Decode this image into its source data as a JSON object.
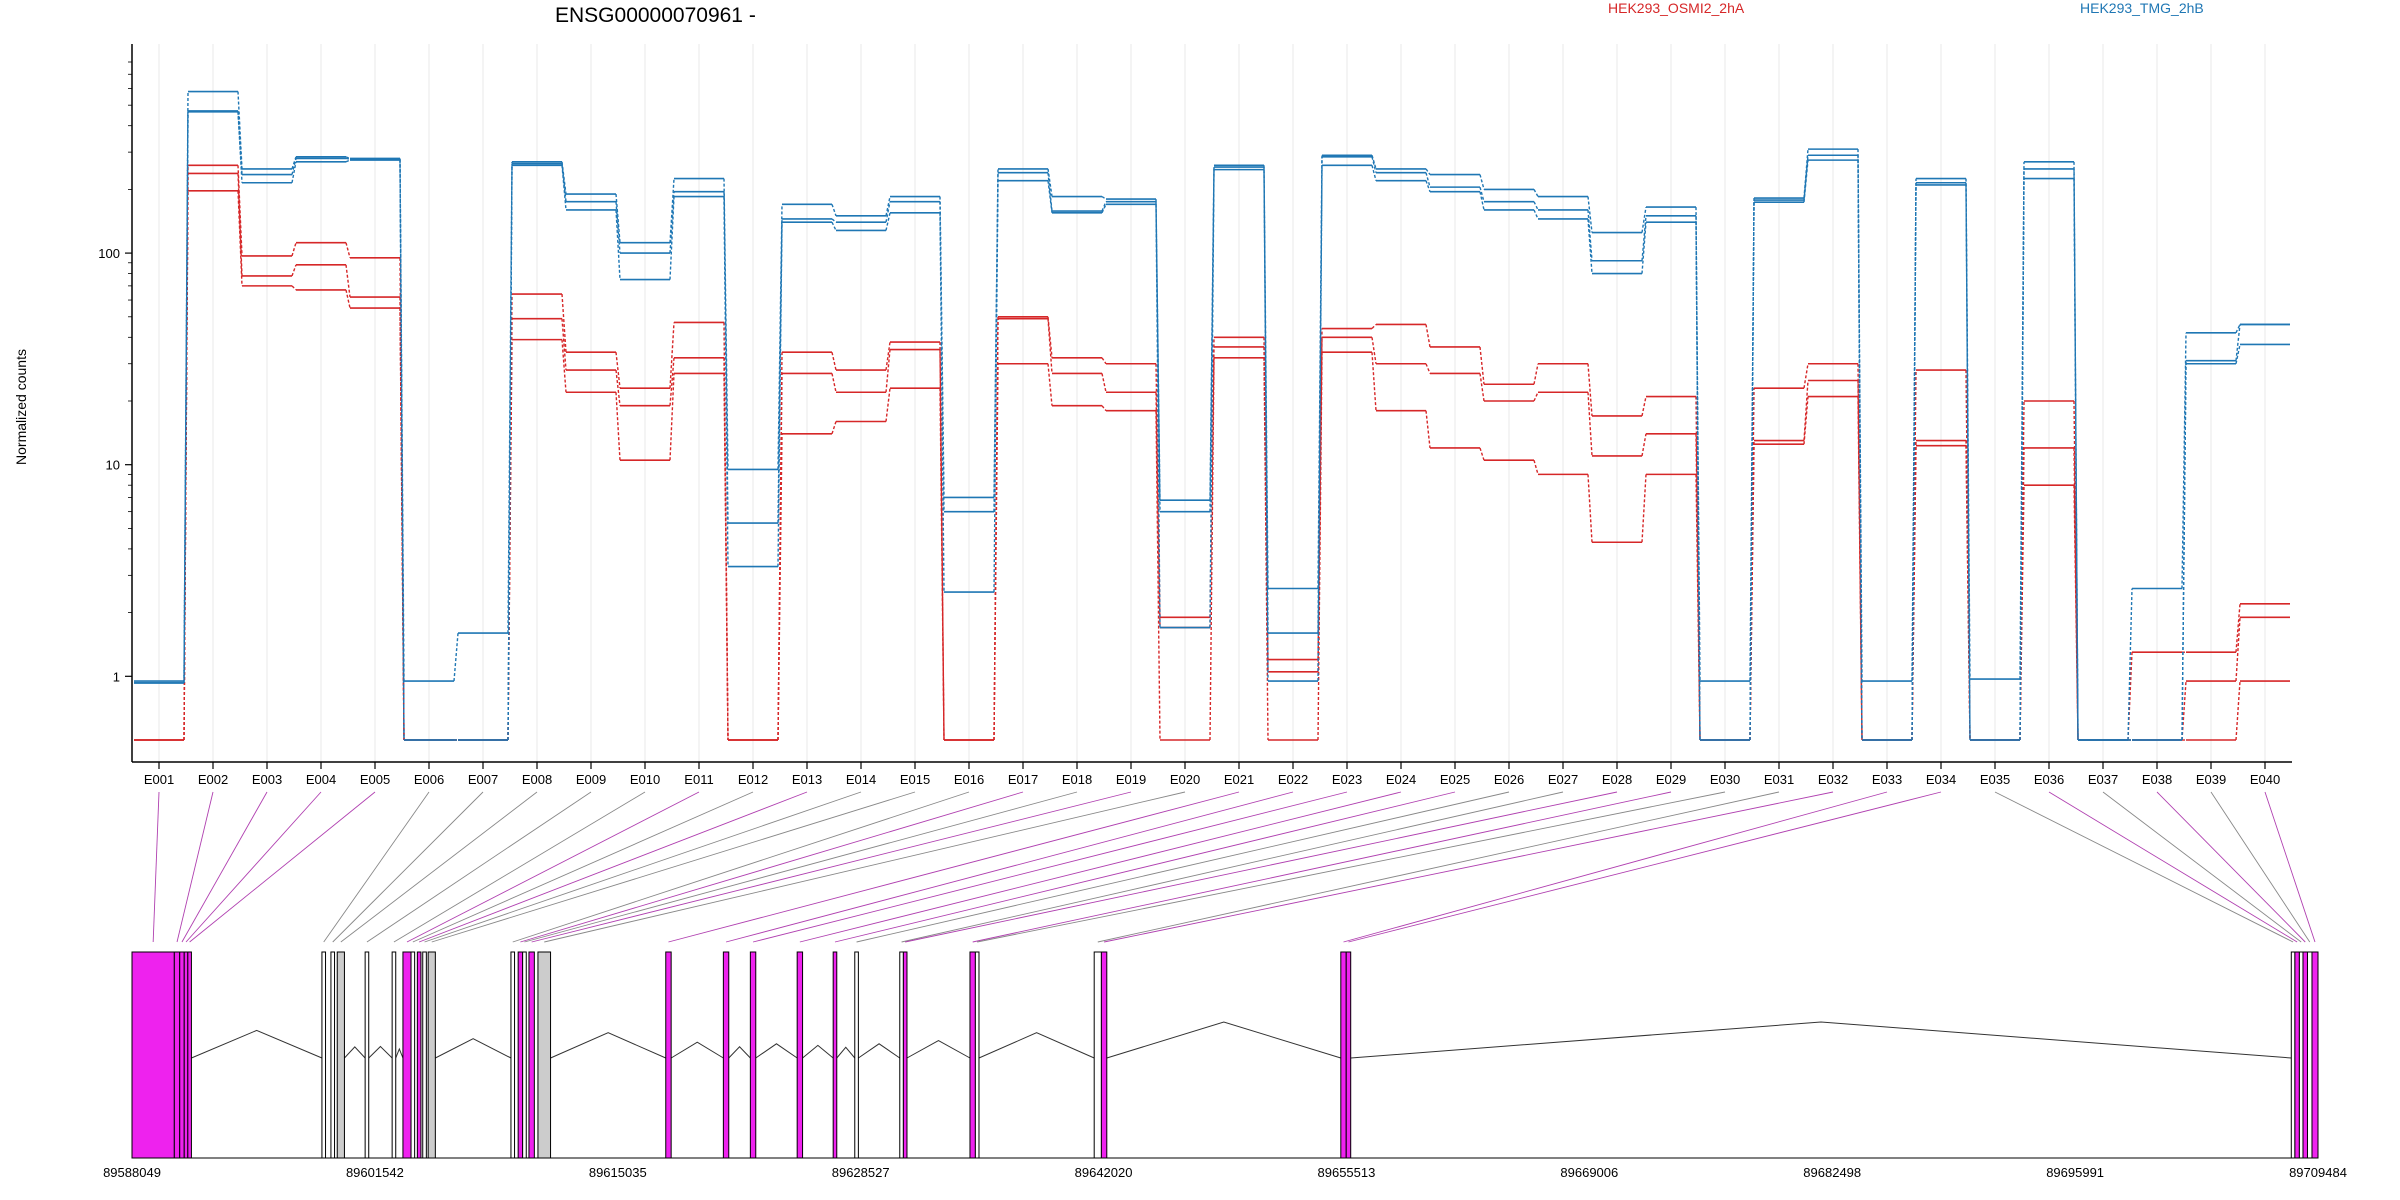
{
  "chart_data": {
    "type": "line",
    "title": "ENSG00000070961 -",
    "ylabel": "Normalized counts",
    "yscale": "log",
    "ylim": [
      0.5,
      800
    ],
    "yticks": [
      "1",
      "10",
      "100"
    ],
    "categories": [
      "E001",
      "E002",
      "E003",
      "E004",
      "E005",
      "E006",
      "E007",
      "E008",
      "E009",
      "E010",
      "E011",
      "E012",
      "E013",
      "E014",
      "E015",
      "E016",
      "E017",
      "E018",
      "E019",
      "E020",
      "E021",
      "E022",
      "E023",
      "E024",
      "E025",
      "E026",
      "E027",
      "E028",
      "E029",
      "E030",
      "E031",
      "E032",
      "E033",
      "E034",
      "E035",
      "E036",
      "E037",
      "E038",
      "E039",
      "E040"
    ],
    "legend": [
      {
        "label": "HEK293_OSMI2_2hA",
        "color": "#d62728"
      },
      {
        "label": "HEK293_TMG_2hB",
        "color": "#1f77b4"
      }
    ],
    "series": [
      {
        "group": "HEK293_OSMI2_2hA",
        "color": "#d62728",
        "values": [
          0.5,
          260,
          97,
          112,
          95,
          0.5,
          0.5,
          64,
          34,
          23,
          47,
          0.5,
          34,
          28,
          38,
          0.5,
          50,
          32,
          30,
          1.9,
          40,
          1.2,
          44,
          46,
          36,
          24,
          30,
          17,
          21,
          0.5,
          23,
          30,
          0.5,
          28,
          0.5,
          20,
          0.5,
          1.3,
          1.3,
          2.2
        ]
      },
      {
        "group": "HEK293_OSMI2_2hA",
        "color": "#d62728",
        "values": [
          0.5,
          238,
          78,
          88,
          62,
          0.5,
          0.5,
          49,
          28,
          19,
          32,
          0.5,
          27,
          22,
          35,
          0.5,
          49,
          27,
          22,
          1.7,
          36,
          1.05,
          40,
          30,
          27,
          20,
          22,
          11,
          14,
          0.5,
          13,
          25,
          0.5,
          13,
          0.5,
          12,
          0.5,
          0.5,
          0.95,
          1.9
        ]
      },
      {
        "group": "HEK293_OSMI2_2hA",
        "color": "#d62728",
        "values": [
          0.5,
          197,
          70,
          67,
          55,
          0.5,
          0.5,
          39,
          22,
          10.5,
          27,
          0.5,
          14,
          16,
          23,
          0.5,
          30,
          19,
          18,
          0.5,
          32,
          0.5,
          34,
          18,
          12,
          10.5,
          9,
          4.3,
          9,
          0.5,
          12.5,
          21,
          0.5,
          12.3,
          0.5,
          8,
          0.5,
          0.5,
          0.5,
          0.95
        ]
      },
      {
        "group": "HEK293_TMG_2hB",
        "color": "#1f77b4",
        "values": [
          0.95,
          580,
          250,
          285,
          280,
          0.95,
          1.6,
          270,
          190,
          112,
          225,
          9.5,
          170,
          150,
          185,
          7,
          250,
          185,
          180,
          6.8,
          260,
          2.6,
          290,
          250,
          235,
          200,
          185,
          125,
          165,
          0.95,
          182,
          310,
          0.95,
          225,
          0.97,
          270,
          0.5,
          2.6,
          42,
          46
        ]
      },
      {
        "group": "HEK293_TMG_2hB",
        "color": "#1f77b4",
        "values": [
          0.93,
          470,
          235,
          280,
          278,
          0.5,
          0.5,
          265,
          175,
          100,
          195,
          5.3,
          145,
          140,
          175,
          6,
          240,
          158,
          175,
          6,
          255,
          1.6,
          285,
          240,
          205,
          175,
          160,
          92,
          150,
          0.5,
          178,
          290,
          0.5,
          215,
          0.5,
          250,
          0.5,
          0.5,
          31,
          46
        ]
      },
      {
        "group": "HEK293_TMG_2hB",
        "color": "#1f77b4",
        "values": [
          0.93,
          465,
          215,
          270,
          275,
          0.5,
          0.5,
          260,
          160,
          75,
          185,
          3.3,
          140,
          128,
          155,
          2.5,
          220,
          155,
          170,
          1.7,
          248,
          0.95,
          260,
          220,
          195,
          160,
          145,
          80,
          140,
          0.5,
          174,
          275,
          0.5,
          210,
          0.5,
          225,
          0.5,
          0.5,
          30,
          37
        ]
      }
    ],
    "genomic_axis": {
      "tick_labels": [
        "89588049",
        "89601542",
        "89615035",
        "89628527",
        "89642020",
        "89655513",
        "89669006",
        "89682498",
        "89695991",
        "89709484"
      ],
      "range": [
        89588049,
        89709484
      ]
    },
    "exons": [
      {
        "id": "E001",
        "start": 89588049,
        "end": 89590400,
        "color": "#ee22ee"
      },
      {
        "id": "E002",
        "start": 89590400,
        "end": 89590700,
        "color": "#ee22ee"
      },
      {
        "id": "E003",
        "start": 89590700,
        "end": 89590950,
        "color": "#ee22ee"
      },
      {
        "id": "E004",
        "start": 89590950,
        "end": 89591150,
        "color": "#ee22ee"
      },
      {
        "id": "E005",
        "start": 89591150,
        "end": 89591350,
        "color": "#ee22ee"
      },
      {
        "id": "E006",
        "start": 89598600,
        "end": 89598800,
        "color": "#ffffff"
      },
      {
        "id": "E007",
        "start": 89599100,
        "end": 89599300,
        "color": "#ffffff"
      },
      {
        "id": "E008",
        "start": 89599450,
        "end": 89599850,
        "color": "#cccccc"
      },
      {
        "id": "E009",
        "start": 89601000,
        "end": 89601200,
        "color": "#ffffff"
      },
      {
        "id": "E010",
        "start": 89602500,
        "end": 89602700,
        "color": "#ffffff"
      },
      {
        "id": "E011",
        "start": 89603100,
        "end": 89603550,
        "color": "#ee22ee"
      },
      {
        "id": "E012",
        "start": 89603550,
        "end": 89603750,
        "color": "#ffffff"
      },
      {
        "id": "E013",
        "start": 89603900,
        "end": 89604100,
        "color": "#ee22ee"
      },
      {
        "id": "E014",
        "start": 89604200,
        "end": 89604400,
        "color": "#ffffff"
      },
      {
        "id": "E015",
        "start": 89604500,
        "end": 89604900,
        "color": "#cccccc"
      },
      {
        "id": "E016",
        "start": 89609100,
        "end": 89609300,
        "color": "#ffffff"
      },
      {
        "id": "E017",
        "start": 89609500,
        "end": 89609750,
        "color": "#ee22ee"
      },
      {
        "id": "E018",
        "start": 89609750,
        "end": 89609950,
        "color": "#ffffff"
      },
      {
        "id": "E019",
        "start": 89610100,
        "end": 89610400,
        "color": "#ee22ee"
      },
      {
        "id": "E020",
        "start": 89610600,
        "end": 89611300,
        "color": "#cccccc"
      },
      {
        "id": "E021",
        "start": 89617700,
        "end": 89618000,
        "color": "#ee22ee"
      },
      {
        "id": "E022",
        "start": 89620900,
        "end": 89621200,
        "color": "#ee22ee"
      },
      {
        "id": "E023",
        "start": 89622400,
        "end": 89622700,
        "color": "#ee22ee"
      },
      {
        "id": "E024",
        "start": 89625000,
        "end": 89625300,
        "color": "#ee22ee"
      },
      {
        "id": "E025",
        "start": 89627000,
        "end": 89627200,
        "color": "#ee22ee"
      },
      {
        "id": "E026",
        "start": 89628200,
        "end": 89628400,
        "color": "#ffffff"
      },
      {
        "id": "E027",
        "start": 89630700,
        "end": 89630900,
        "color": "#ffffff"
      },
      {
        "id": "E028",
        "start": 89630900,
        "end": 89631100,
        "color": "#ee22ee"
      },
      {
        "id": "E029",
        "start": 89634600,
        "end": 89634900,
        "color": "#ee22ee"
      },
      {
        "id": "E030",
        "start": 89634900,
        "end": 89635100,
        "color": "#ffffff"
      },
      {
        "id": "E031",
        "start": 89641500,
        "end": 89641900,
        "color": "#ffffff"
      },
      {
        "id": "E032",
        "start": 89641900,
        "end": 89642200,
        "color": "#ee22ee"
      },
      {
        "id": "E033",
        "start": 89655200,
        "end": 89655500,
        "color": "#ee22ee"
      },
      {
        "id": "E034",
        "start": 89655500,
        "end": 89655750,
        "color": "#ee22ee"
      },
      {
        "id": "E035",
        "start": 89708000,
        "end": 89708200,
        "color": "#ffffff"
      },
      {
        "id": "E036",
        "start": 89708200,
        "end": 89708450,
        "color": "#ee22ee"
      },
      {
        "id": "E037",
        "start": 89708450,
        "end": 89708650,
        "color": "#ffffff"
      },
      {
        "id": "E038",
        "start": 89708650,
        "end": 89708900,
        "color": "#ee22ee"
      },
      {
        "id": "E039",
        "start": 89708900,
        "end": 89709150,
        "color": "#ffffff"
      },
      {
        "id": "E040",
        "start": 89709150,
        "end": 89709484,
        "color": "#ee22ee"
      }
    ]
  }
}
